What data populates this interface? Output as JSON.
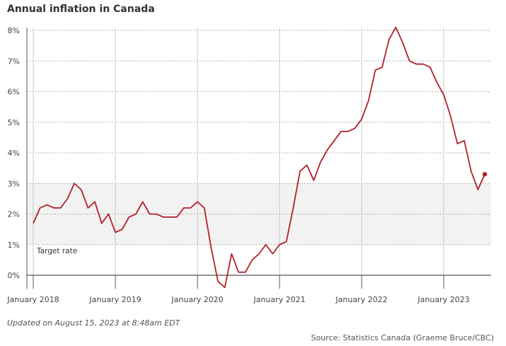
{
  "title": "Annual inflation in Canada",
  "footer": {
    "updated": "Updated on August 15, 2023 at 8:48am EDT",
    "source": "Source: Statistics Canada (Graeme Bruce/CBC)"
  },
  "colors": {
    "line": "#b3202a",
    "band": "#f2f2f2",
    "grid": "#999999",
    "axis": "#555555"
  },
  "chart_data": {
    "type": "line",
    "title": "Annual inflation in Canada",
    "xlabel": "",
    "ylabel": "",
    "ylim": [
      0,
      8
    ],
    "y_ticks": [
      0,
      1,
      2,
      3,
      4,
      5,
      6,
      7,
      8
    ],
    "y_tick_labels": [
      "0%",
      "1%",
      "2%",
      "3%",
      "4%",
      "5%",
      "6%",
      "7%",
      "8%"
    ],
    "x_ticks": [
      "2018-01",
      "2019-01",
      "2020-01",
      "2021-01",
      "2022-01",
      "2023-01"
    ],
    "x_tick_labels": [
      "January 2018",
      "January 2019",
      "January 2020",
      "January 2021",
      "January 2022",
      "January 2023"
    ],
    "x_range": [
      "2018-01",
      "2023-08"
    ],
    "target_band": {
      "label": "Target rate",
      "from": 1,
      "to": 3
    },
    "grid": {
      "horizontal": "dotted",
      "vertical": "solid"
    },
    "series": [
      {
        "x": [
          "2018-01",
          "2018-02",
          "2018-03",
          "2018-04",
          "2018-05",
          "2018-06",
          "2018-07",
          "2018-08",
          "2018-09",
          "2018-10",
          "2018-11",
          "2018-12",
          "2019-01",
          "2019-02",
          "2019-03",
          "2019-04",
          "2019-05",
          "2019-06",
          "2019-07",
          "2019-08",
          "2019-09",
          "2019-10",
          "2019-11",
          "2019-12",
          "2020-01",
          "2020-02",
          "2020-03",
          "2020-04",
          "2020-05",
          "2020-06",
          "2020-07",
          "2020-08",
          "2020-09",
          "2020-10",
          "2020-11",
          "2020-12",
          "2021-01",
          "2021-02",
          "2021-03",
          "2021-04",
          "2021-05",
          "2021-06",
          "2021-07",
          "2021-08",
          "2021-09",
          "2021-10",
          "2021-11",
          "2021-12",
          "2022-01",
          "2022-02",
          "2022-03",
          "2022-04",
          "2022-05",
          "2022-06",
          "2022-07",
          "2022-08",
          "2022-09",
          "2022-10",
          "2022-11",
          "2022-12",
          "2023-01",
          "2023-02",
          "2023-03",
          "2023-04",
          "2023-05",
          "2023-06",
          "2023-07"
        ],
        "values": [
          1.7,
          2.2,
          2.3,
          2.2,
          2.2,
          2.5,
          3.0,
          2.8,
          2.2,
          2.4,
          1.7,
          2.0,
          1.4,
          1.5,
          1.9,
          2.0,
          2.4,
          2.0,
          2.0,
          1.9,
          1.9,
          1.9,
          2.2,
          2.2,
          2.4,
          2.2,
          0.9,
          -0.2,
          -0.4,
          0.7,
          0.1,
          0.1,
          0.5,
          0.7,
          1.0,
          0.7,
          1.0,
          1.1,
          2.2,
          3.4,
          3.6,
          3.1,
          3.7,
          4.1,
          4.4,
          4.7,
          4.7,
          4.8,
          5.1,
          5.7,
          6.7,
          6.8,
          7.7,
          8.1,
          7.6,
          7.0,
          6.9,
          6.9,
          6.8,
          6.3,
          5.9,
          5.2,
          4.3,
          4.4,
          3.4,
          2.8,
          3.3
        ]
      }
    ]
  }
}
